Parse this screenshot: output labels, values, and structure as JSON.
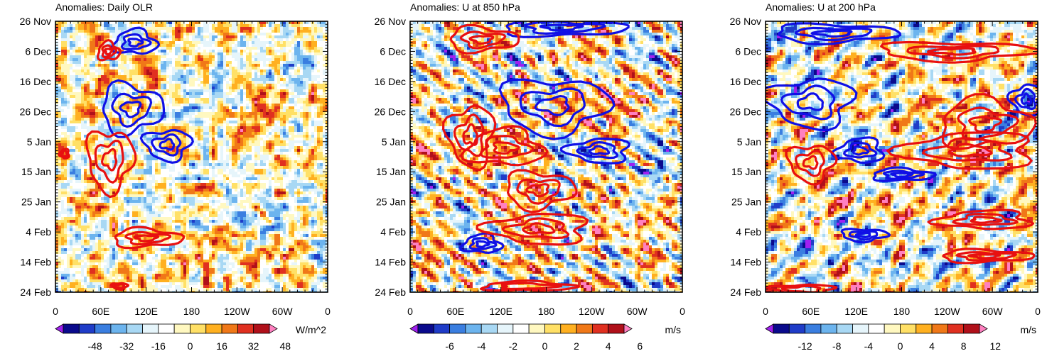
{
  "chart_data": [
    {
      "type": "heatmap",
      "title": "Anomalies: Daily OLR",
      "field": "OLR",
      "y_tick_labels": [
        "26 Nov",
        "6 Dec",
        "16 Dec",
        "26 Dec",
        "5 Jan",
        "15 Jan",
        "25 Jan",
        "4 Feb",
        "14 Feb",
        "24 Feb"
      ],
      "x_tick_labels": [
        "0",
        "60E",
        "120E",
        "180",
        "120W",
        "60W",
        "0"
      ],
      "xlim": [
        0,
        360
      ],
      "colorbar": {
        "labels": [
          "-48",
          "-32",
          "-16",
          "0",
          "16",
          "32",
          "48"
        ],
        "units": "W/m^2",
        "levels": [
          -56,
          -48,
          -40,
          -32,
          -24,
          -16,
          -8,
          0,
          8,
          16,
          24,
          32,
          40,
          48,
          56
        ]
      },
      "contours": {
        "negative": [
          {
            "lon": 105,
            "day": 7,
            "rx": 28,
            "ry": 4
          },
          {
            "lon": 100,
            "day": 29,
            "rx": 40,
            "ry": 8
          },
          {
            "lon": 148,
            "day": 41,
            "rx": 30,
            "ry": 5
          }
        ],
        "positive": [
          {
            "lon": 70,
            "day": 10,
            "rx": 14,
            "ry": 3
          },
          {
            "lon": 72,
            "day": 46,
            "rx": 30,
            "ry": 10
          },
          {
            "lon": 12,
            "day": 44,
            "rx": 6,
            "ry": 1.5
          },
          {
            "lon": 120,
            "day": 72,
            "rx": 45,
            "ry": 3
          },
          {
            "lon": 85,
            "day": 88,
            "rx": 10,
            "ry": 1
          }
        ]
      }
    },
    {
      "type": "heatmap",
      "title": "Anomalies: U at 850 hPa",
      "field": "U850",
      "y_tick_labels": [
        "26 Nov",
        "6 Dec",
        "16 Dec",
        "26 Dec",
        "5 Jan",
        "15 Jan",
        "25 Jan",
        "4 Feb",
        "14 Feb",
        "24 Feb"
      ],
      "x_tick_labels": [
        "0",
        "60E",
        "120E",
        "180",
        "120W",
        "60W",
        "0"
      ],
      "xlim": [
        0,
        360
      ],
      "colorbar": {
        "labels": [
          "-6",
          "-4",
          "-2",
          "0",
          "2",
          "4",
          "6"
        ],
        "units": "m/s",
        "levels": [
          -7,
          -6,
          -5,
          -4,
          -3,
          -2,
          -1,
          0,
          1,
          2,
          3,
          4,
          5,
          6,
          7
        ]
      },
      "contours": {
        "negative": [
          {
            "lon": 200,
            "day": 2,
            "rx": 80,
            "ry": 3
          },
          {
            "lon": 190,
            "day": 28,
            "rx": 70,
            "ry": 9
          },
          {
            "lon": 250,
            "day": 43,
            "rx": 40,
            "ry": 4
          },
          {
            "lon": 95,
            "day": 74,
            "rx": 25,
            "ry": 3
          }
        ],
        "positive": [
          {
            "lon": 95,
            "day": 6,
            "rx": 45,
            "ry": 4
          },
          {
            "lon": 80,
            "day": 38,
            "rx": 30,
            "ry": 10
          },
          {
            "lon": 125,
            "day": 42,
            "rx": 50,
            "ry": 6
          },
          {
            "lon": 170,
            "day": 56,
            "rx": 45,
            "ry": 6
          },
          {
            "lon": 170,
            "day": 69,
            "rx": 65,
            "ry": 5
          },
          {
            "lon": 155,
            "day": 88,
            "rx": 60,
            "ry": 1.5
          }
        ]
      }
    },
    {
      "type": "heatmap",
      "title": "Anomalies: U at 200 hPa",
      "field": "U200",
      "y_tick_labels": [
        "26 Nov",
        "6 Dec",
        "16 Dec",
        "26 Dec",
        "5 Jan",
        "15 Jan",
        "25 Jan",
        "4 Feb",
        "14 Feb",
        "24 Feb"
      ],
      "x_tick_labels": [
        "0",
        "60E",
        "120E",
        "180",
        "120W",
        "60W",
        "0"
      ],
      "xlim": [
        0,
        360
      ],
      "colorbar": {
        "labels": [
          "-12",
          "-8",
          "-4",
          "0",
          "4",
          "8",
          "12"
        ],
        "units": "m/s",
        "levels": [
          -14,
          -12,
          -10,
          -8,
          -6,
          -4,
          -2,
          0,
          2,
          4,
          6,
          8,
          10,
          12,
          14
        ]
      },
      "contours": {
        "negative": [
          {
            "lon": 90,
            "day": 4,
            "rx": 80,
            "ry": 3
          },
          {
            "lon": 60,
            "day": 27,
            "rx": 55,
            "ry": 8
          },
          {
            "lon": 125,
            "day": 43,
            "rx": 30,
            "ry": 4
          },
          {
            "lon": 180,
            "day": 51,
            "rx": 40,
            "ry": 2
          },
          {
            "lon": 130,
            "day": 71,
            "rx": 30,
            "ry": 2
          },
          {
            "lon": 345,
            "day": 26,
            "rx": 20,
            "ry": 5
          }
        ],
        "positive": [
          {
            "lon": 250,
            "day": 10,
            "rx": 100,
            "ry": 3
          },
          {
            "lon": 270,
            "day": 43,
            "rx": 85,
            "ry": 6
          },
          {
            "lon": 290,
            "day": 34,
            "rx": 60,
            "ry": 8
          },
          {
            "lon": 60,
            "day": 47,
            "rx": 30,
            "ry": 6
          },
          {
            "lon": 290,
            "day": 66,
            "rx": 60,
            "ry": 3
          },
          {
            "lon": 290,
            "day": 78,
            "rx": 60,
            "ry": 2
          },
          {
            "lon": 50,
            "day": 89,
            "rx": 40,
            "ry": 1.5
          }
        ]
      }
    }
  ]
}
